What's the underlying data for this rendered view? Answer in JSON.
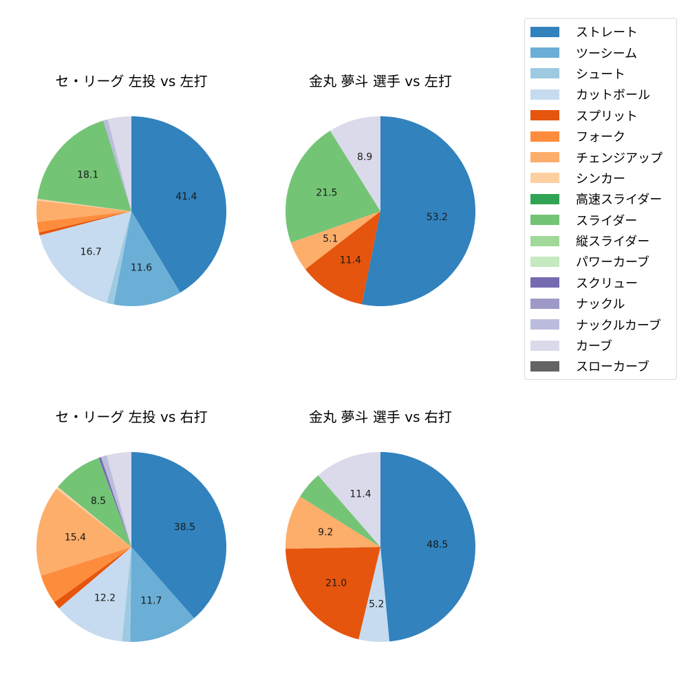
{
  "legend": {
    "items": [
      {
        "label": "ストレート",
        "color": "#3182bd"
      },
      {
        "label": "ツーシーム",
        "color": "#6baed6"
      },
      {
        "label": "シュート",
        "color": "#9ecae1"
      },
      {
        "label": "カットボール",
        "color": "#c6dbef"
      },
      {
        "label": "スプリット",
        "color": "#e6550d"
      },
      {
        "label": "フォーク",
        "color": "#fd8d3c"
      },
      {
        "label": "チェンジアップ",
        "color": "#fdae6b"
      },
      {
        "label": "シンカー",
        "color": "#fdd0a2"
      },
      {
        "label": "高速スライダー",
        "color": "#31a354"
      },
      {
        "label": "スライダー",
        "color": "#74c476"
      },
      {
        "label": "縦スライダー",
        "color": "#a1d99b"
      },
      {
        "label": "パワーカーブ",
        "color": "#c7e9c0"
      },
      {
        "label": "スクリュー",
        "color": "#756bb1"
      },
      {
        "label": "ナックル",
        "color": "#9e9ac8"
      },
      {
        "label": "ナックルカーブ",
        "color": "#bcbddc"
      },
      {
        "label": "カーブ",
        "color": "#dadaeb"
      },
      {
        "label": "スローカーブ",
        "color": "#636363"
      }
    ]
  },
  "chart_data": [
    {
      "type": "pie",
      "title": "セ・リーグ 左投 vs 左打",
      "start_angle": 90,
      "direction": "clockwise",
      "categories": [
        "ストレート",
        "ツーシーム",
        "シュート",
        "カットボール",
        "スプリット",
        "フォーク",
        "チェンジアップ",
        "シンカー",
        "スライダー",
        "ナックルカーブ",
        "カーブ"
      ],
      "values": [
        41.4,
        11.6,
        1.2,
        16.7,
        0.5,
        1.8,
        3.6,
        0.3,
        18.1,
        0.8,
        4.0
      ],
      "labels_shown": [
        "41.4",
        "11.6",
        "",
        "16.7",
        "",
        "",
        "",
        "",
        "18.1",
        "",
        ""
      ]
    },
    {
      "type": "pie",
      "title": "金丸 夢斗 選手 vs 左打",
      "start_angle": 90,
      "direction": "clockwise",
      "categories": [
        "ストレート",
        "スプリット",
        "チェンジアップ",
        "スライダー",
        "カーブ"
      ],
      "values": [
        53.2,
        11.4,
        5.1,
        21.5,
        8.9
      ],
      "labels_shown": [
        "53.2",
        "11.4",
        "5.1",
        "21.5",
        "8.9"
      ]
    },
    {
      "type": "pie",
      "title": "セ・リーグ 左投 vs 右打",
      "start_angle": 90,
      "direction": "clockwise",
      "categories": [
        "ストレート",
        "ツーシーム",
        "シュート",
        "カットボール",
        "スプリット",
        "フォーク",
        "チェンジアップ",
        "シンカー",
        "スライダー",
        "スクリュー",
        "ナックルカーブ",
        "カーブ"
      ],
      "values": [
        38.5,
        11.7,
        1.4,
        12.2,
        1.3,
        5.0,
        15.4,
        0.4,
        8.5,
        0.4,
        1.0,
        4.2
      ],
      "labels_shown": [
        "38.5",
        "11.7",
        "",
        "12.2",
        "",
        "",
        "15.4",
        "",
        "8.5",
        "",
        "",
        ""
      ]
    },
    {
      "type": "pie",
      "title": "金丸 夢斗 選手 vs 右打",
      "start_angle": 90,
      "direction": "clockwise",
      "categories": [
        "ストレート",
        "カットボール",
        "スプリット",
        "チェンジアップ",
        "スライダー",
        "カーブ"
      ],
      "values": [
        48.5,
        5.2,
        21.0,
        9.2,
        4.7,
        11.4
      ],
      "labels_shown": [
        "48.5",
        "5.2",
        "21.0",
        "9.2",
        "",
        "11.4"
      ]
    }
  ]
}
